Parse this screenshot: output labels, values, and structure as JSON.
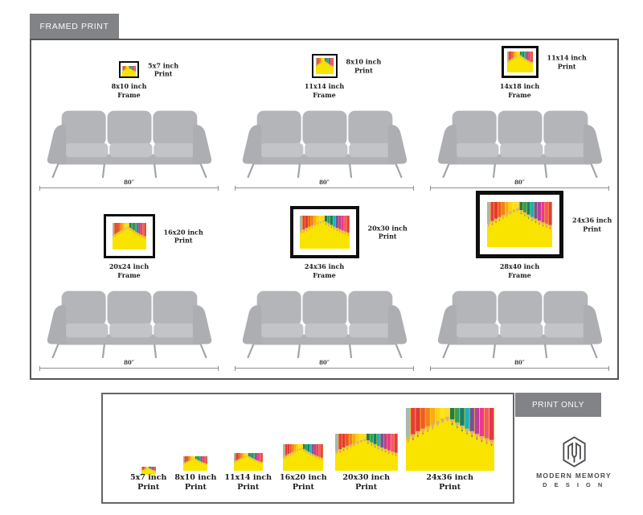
{
  "framed_section": {
    "tab_label": "FRAMED PRINT",
    "labels": {
      "print_word": "Print",
      "frame_word": "Frame",
      "width_label": "80″"
    },
    "scenes": [
      {
        "print_size": "5x7 inch",
        "frame_size": "8x10 inch"
      },
      {
        "print_size": "8x10 inch",
        "frame_size": "11x14 inch"
      },
      {
        "print_size": "11x14 inch",
        "frame_size": "14x18 inch"
      },
      {
        "print_size": "16x20 inch",
        "frame_size": "20x24 inch"
      },
      {
        "print_size": "20x30 inch",
        "frame_size": "24x36 inch"
      },
      {
        "print_size": "24x36 inch",
        "frame_size": "28x40 inch"
      }
    ]
  },
  "print_only_section": {
    "tab_label": "PRINT ONLY",
    "labels": {
      "print_word": "Print"
    },
    "items": [
      {
        "size": "5x7 inch"
      },
      {
        "size": "8x10 inch"
      },
      {
        "size": "11x14 inch"
      },
      {
        "size": "16x20 inch"
      },
      {
        "size": "20x30 inch"
      },
      {
        "size": "24x36 inch"
      }
    ]
  },
  "logo": {
    "line1": "MODERN MEMORY",
    "line2": "D E S I G N"
  },
  "pencil_art": {
    "background": "#f9e400",
    "wood": "#dcaf77",
    "colors": [
      "#a9b6b2",
      "#e73c3e",
      "#e2383a",
      "#ef5a2a",
      "#f57f20",
      "#fbaa19",
      "#fdd116",
      "#ffe31a",
      "#ffd92e",
      "#1f7a54",
      "#2f9e68",
      "#157f6d",
      "#19b0c4",
      "#6f54a0",
      "#bc3ba0",
      "#f0368e",
      "#f4547c",
      "#e23a46"
    ],
    "tip_levels": [
      0.56,
      0.52,
      0.47,
      0.43,
      0.39,
      0.35,
      0.31,
      0.27,
      0.24,
      0.28,
      0.33,
      0.38,
      0.43,
      0.47,
      0.51,
      0.55,
      0.58,
      0.61
    ]
  },
  "colors": {
    "tab_bg": "#828386",
    "tab_text": "#fbfbfb",
    "panel_border": "#55565a",
    "couch_gray": "#b3b5b8",
    "dim_line": "#8f8f8f",
    "logo_gray": "#4b4b4f"
  }
}
